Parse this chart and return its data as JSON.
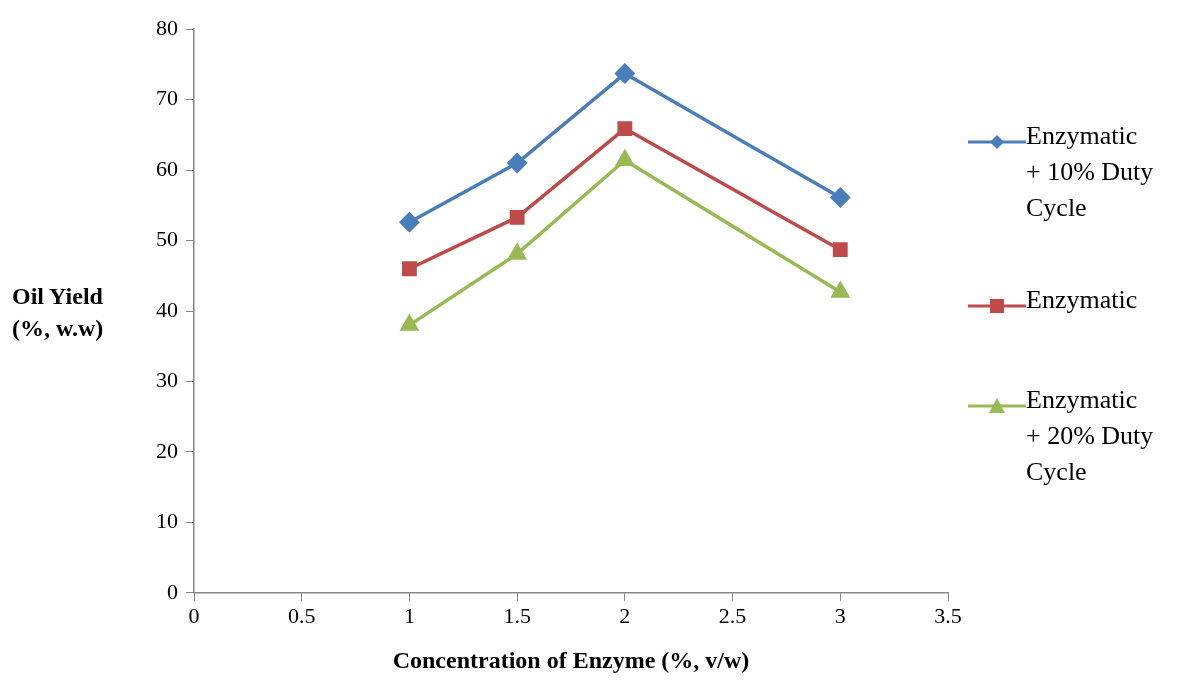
{
  "chart_data": {
    "type": "line",
    "xlabel": "Concentration of Enzyme (%, v/w)",
    "ylabel": "Oil Yield (%, w.w)",
    "x": [
      1,
      1.5,
      2,
      3
    ],
    "series": [
      {
        "name": "Enzymatic + 10% Duty Cycle",
        "color": "#4a7ebb",
        "marker": "diamond",
        "values": [
          52.6,
          61.0,
          73.7,
          56.1
        ]
      },
      {
        "name": "Enzymatic",
        "color": "#be4b48",
        "marker": "square",
        "values": [
          46.0,
          53.3,
          65.9,
          48.7
        ]
      },
      {
        "name": "Enzymatic + 20% Duty Cycle",
        "color": "#98b954",
        "marker": "triangle",
        "values": [
          38.0,
          48.1,
          61.4,
          42.7
        ]
      }
    ],
    "xlim": [
      0,
      3.5
    ],
    "xticks": [
      0,
      0.5,
      1,
      1.5,
      2,
      2.5,
      3,
      3.5
    ],
    "ylim": [
      0,
      80
    ],
    "yticks": [
      0,
      10,
      20,
      30,
      40,
      50,
      60,
      70,
      80
    ],
    "grid": false,
    "legend": "right",
    "line_style": "solid"
  }
}
